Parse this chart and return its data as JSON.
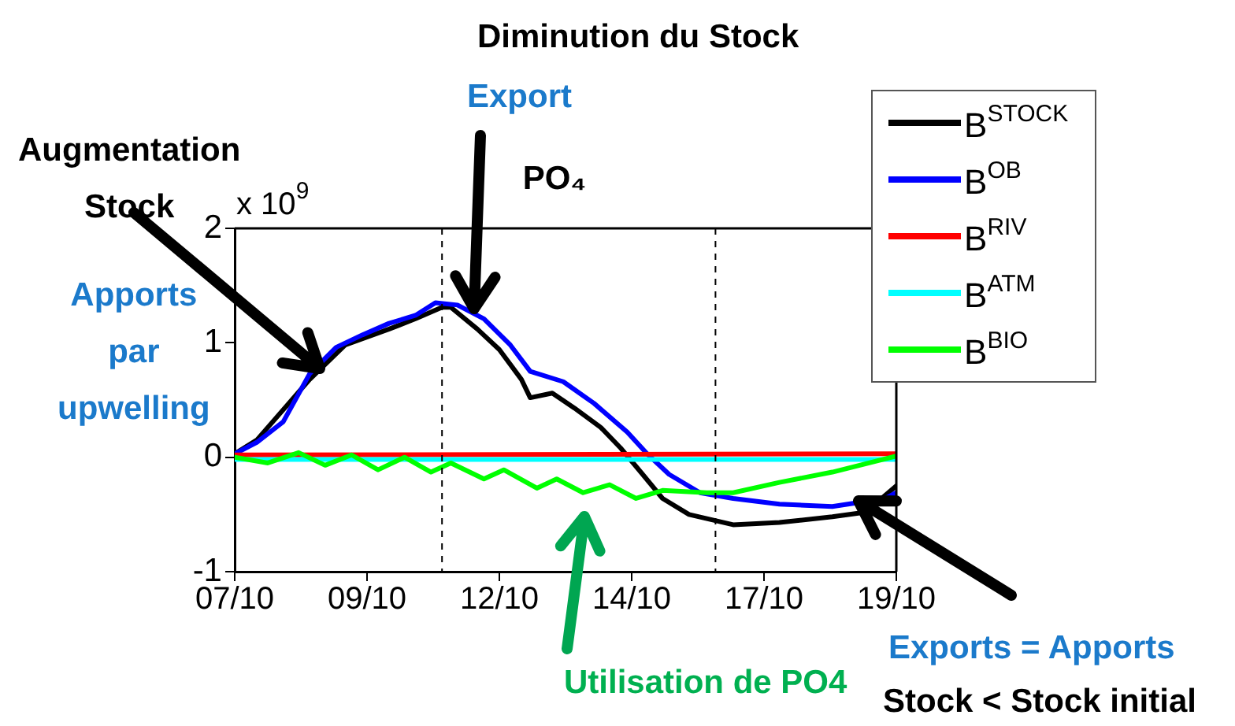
{
  "chart_data": {
    "type": "line",
    "title": "PO₄",
    "annotations": [
      "x 10$^{9}$",
      "Diminution du Stock",
      "Export",
      "Augmentation Stock",
      "Apports par upwelling",
      "Utilisation de PO4",
      "Exports = Apports",
      "Stock < Stock initial"
    ],
    "xlim": [
      "--10-07T00:00",
      "--10-19T12:00"
    ],
    "xticks": [
      {
        "value": "--10-07T00:00",
        "label": "07/10"
      },
      {
        "value": "--10-09T12:00",
        "label": "09/10"
      },
      {
        "value": "--10-12T00:00",
        "label": "12/10"
      },
      {
        "value": "--10-14T12:00",
        "label": "14/10"
      },
      {
        "value": "--10-17T00:00",
        "label": "17/10"
      },
      {
        "value": "--10-19T12:00",
        "label": "19/10"
      }
    ],
    "ylim": [
      -1,
      2
    ],
    "yticks": [
      -1,
      0,
      1,
      2
    ],
    "legend": "top right",
    "marker": "none",
    "line_style": "solid",
    "ref_lines": [
      {
        "axis": "x",
        "value": "--10-10T22:00",
        "color": "#000000",
        "line_style": "dashed"
      },
      {
        "axis": "x",
        "value": "--10-16T02:00",
        "color": "#000000",
        "line_style": "dashed"
      }
    ],
    "series": [
      {
        "name": "B$^{STOCK}$",
        "color": "#000000",
        "x": [
          "--10-07T00:00",
          "--10-07T10:00",
          "--10-08T10:00",
          "--10-09T02:00",
          "--10-09T22:00",
          "--10-10T10:00",
          "--10-10T22:00",
          "--10-11T02:00",
          "--10-11T14:00",
          "--10-12T00:00",
          "--10-12T10:00",
          "--10-12T14:00",
          "--10-13T00:00",
          "--10-13T10:00",
          "--10-13T22:00",
          "--10-14T07:00",
          "--10-14T17:00",
          "--10-15T02:00",
          "--10-15T14:00",
          "--10-16T10:00",
          "--10-17T07:00",
          "--10-18T07:00",
          "--10-18T22:00",
          "--10-19T12:00"
        ],
        "values": [
          0.03,
          0.15,
          0.68,
          0.98,
          1.12,
          1.21,
          1.31,
          1.31,
          1.12,
          0.94,
          0.68,
          0.52,
          0.56,
          0.43,
          0.26,
          0.08,
          -0.15,
          -0.36,
          -0.5,
          -0.59,
          -0.57,
          -0.52,
          -0.48,
          -0.25
        ]
      },
      {
        "name": "B$^{OB}$",
        "color": "#0000ff",
        "x": [
          "--10-07T00:00",
          "--10-07T10:00",
          "--10-07T22:00",
          "--10-08T10:00",
          "--10-08T22:00",
          "--10-09T10:00",
          "--10-09T22:00",
          "--10-10T10:00",
          "--10-10T19:00",
          "--10-11T05:00",
          "--10-11T17:00",
          "--10-12T05:00",
          "--10-12T14:00",
          "--10-13T05:00",
          "--10-13T19:00",
          "--10-14T10:00",
          "--10-14T19:00",
          "--10-15T05:00",
          "--10-15T19:00",
          "--10-16T10:00",
          "--10-17T07:00",
          "--10-18T07:00",
          "--10-19T07:00",
          "--10-19T12:00"
        ],
        "values": [
          0.03,
          0.13,
          0.31,
          0.73,
          0.96,
          1.07,
          1.17,
          1.24,
          1.35,
          1.33,
          1.21,
          0.98,
          0.75,
          0.66,
          0.47,
          0.22,
          0.03,
          -0.15,
          -0.31,
          -0.36,
          -0.41,
          -0.43,
          -0.36,
          -0.31
        ]
      },
      {
        "name": "B$^{RIV}$",
        "color": "#ff0000",
        "x": [
          "--10-07T00:00",
          "--10-19T12:00"
        ],
        "values": [
          0.02,
          0.03
        ]
      },
      {
        "name": "B$^{ATM}$",
        "color": "#00ffff",
        "x": [
          "--10-07T00:00",
          "--10-19T12:00"
        ],
        "values": [
          -0.02,
          -0.02
        ]
      },
      {
        "name": "B$^{BIO}$",
        "color": "#00ff00",
        "x": [
          "--10-07T00:00",
          "--10-07T15:00",
          "--10-08T05:00",
          "--10-08T17:00",
          "--10-09T05:00",
          "--10-09T17:00",
          "--10-10T05:00",
          "--10-10T17:00",
          "--10-11T02:00",
          "--10-11T17:00",
          "--10-12T02:00",
          "--10-12T17:00",
          "--10-13T02:00",
          "--10-13T14:00",
          "--10-14T02:00",
          "--10-14T14:00",
          "--10-15T02:00",
          "--10-15T22:00",
          "--10-16T10:00",
          "--10-17T07:00",
          "--10-18T07:00",
          "--10-19T12:00"
        ],
        "values": [
          0,
          -0.05,
          0.04,
          -0.07,
          0.02,
          -0.11,
          0,
          -0.13,
          -0.05,
          -0.19,
          -0.11,
          -0.27,
          -0.19,
          -0.31,
          -0.24,
          -0.36,
          -0.29,
          -0.31,
          -0.31,
          -0.22,
          -0.13,
          0.01
        ]
      }
    ]
  }
}
